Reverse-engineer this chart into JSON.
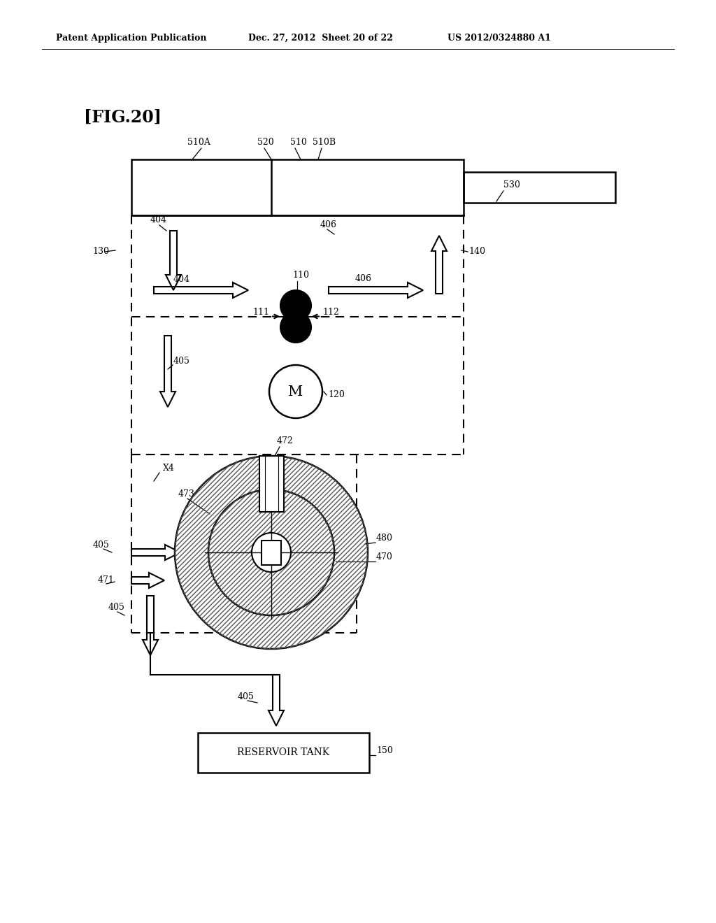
{
  "title": "[FIG.20]",
  "header_left": "Patent Application Publication",
  "header_mid": "Dec. 27, 2012  Sheet 20 of 22",
  "header_right": "US 2012/0324880 A1",
  "bg_color": "#ffffff",
  "text_color": "#000000",
  "line_color": "#000000"
}
